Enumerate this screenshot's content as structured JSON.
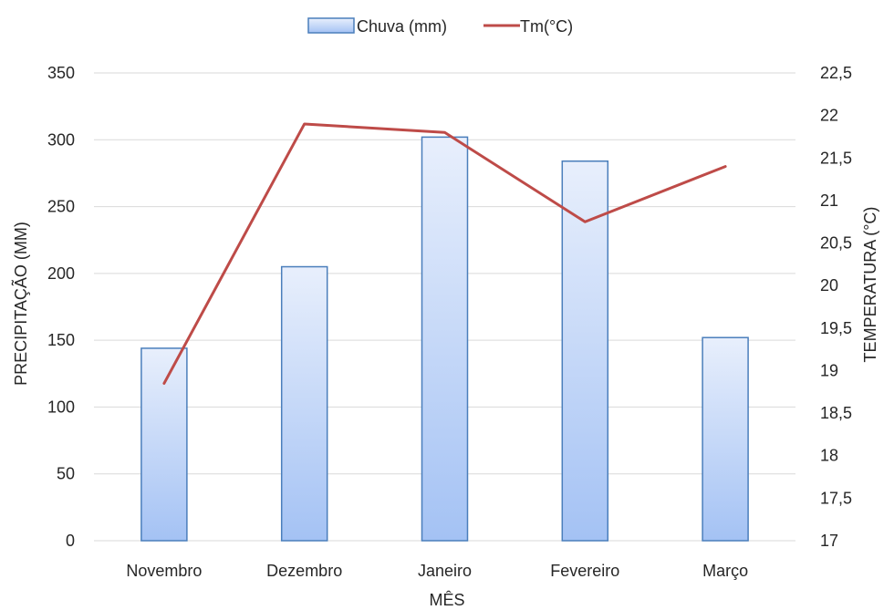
{
  "chart_data": {
    "type": "bar",
    "categories": [
      "Novembro",
      "Dezembro",
      "Janeiro",
      "Fevereiro",
      "Março"
    ],
    "series": [
      {
        "name": "Chuva (mm)",
        "type": "bar",
        "axis": "left",
        "values": [
          144,
          205,
          302,
          284,
          152
        ]
      },
      {
        "name": "Tm(°C)",
        "type": "line",
        "axis": "right",
        "values": [
          18.85,
          21.9,
          21.8,
          20.75,
          21.4
        ]
      }
    ],
    "xlabel": "MÊS",
    "ylabel": "PRECIPITAÇÃO (MM)",
    "y2label": "TEMPERATURA (°C)",
    "ylim": [
      0,
      350
    ],
    "y2lim": [
      17,
      22.5
    ],
    "yticks": [
      "0",
      "50",
      "100",
      "150",
      "200",
      "250",
      "300",
      "350"
    ],
    "y2ticks": [
      "17",
      "17,5",
      "18",
      "18,5",
      "19",
      "19,5",
      "20",
      "20,5",
      "21",
      "21,5",
      "22",
      "22,5"
    ],
    "grid": true,
    "legend_position": "top-center",
    "colors": {
      "bar_fill_top": "#e8effc",
      "bar_fill_bottom": "#a4c2f4",
      "bar_stroke": "#4a7ebb",
      "line": "#be4b48",
      "grid": "#d9d9d9"
    }
  }
}
